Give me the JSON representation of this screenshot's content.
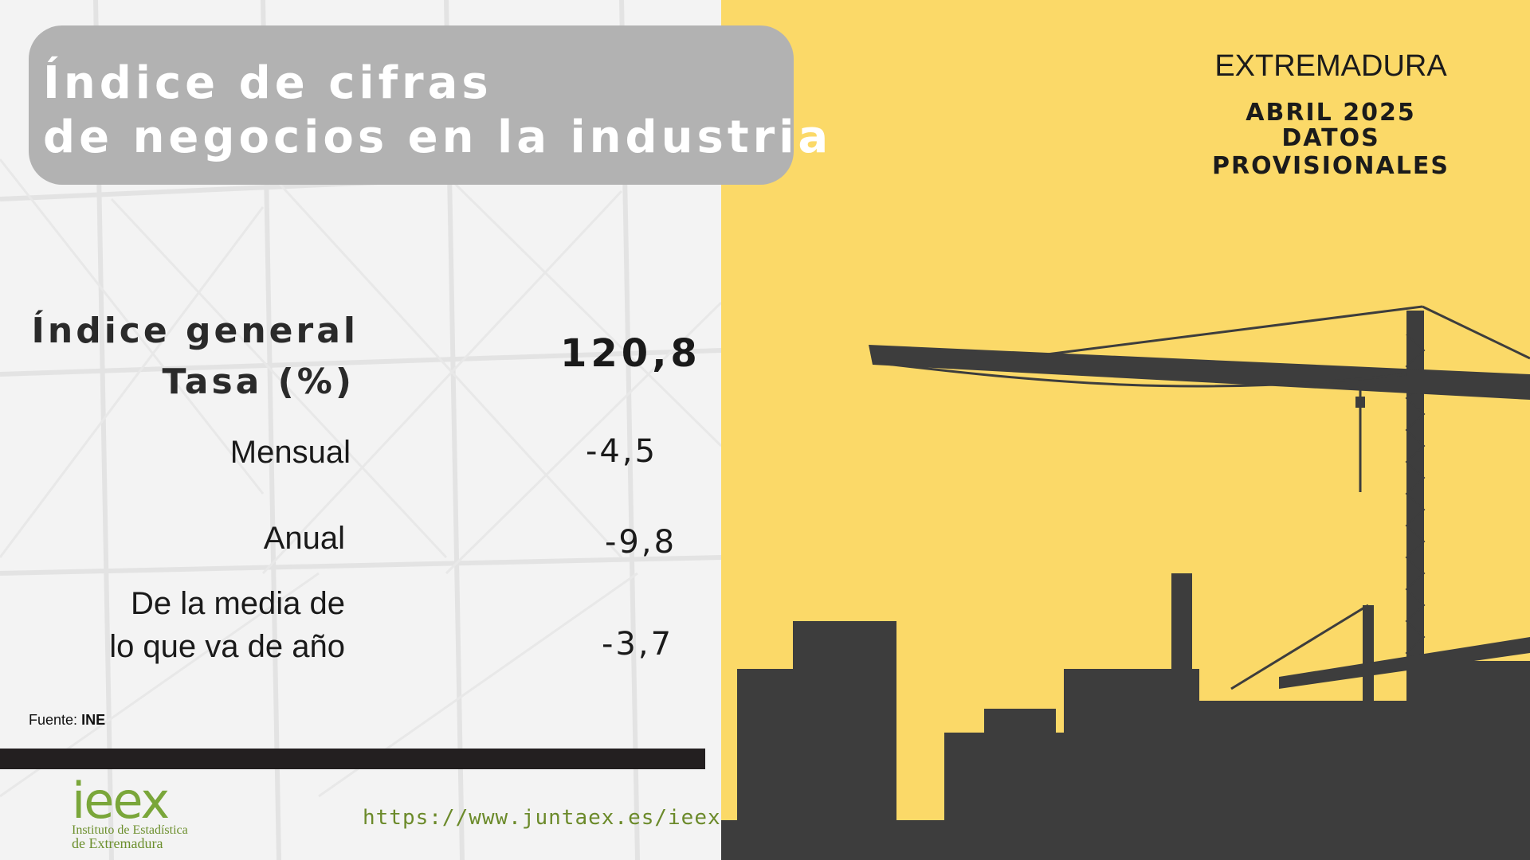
{
  "title": {
    "line1": "Índice de cifras",
    "line2": "de negocios en la industria"
  },
  "header": {
    "region": "EXTREMADURA",
    "period": "ABRIL 2025",
    "status": "DATOS PROVISIONALES"
  },
  "indicators": {
    "general_label": "Índice general",
    "general_value": "120,8",
    "rate_label": "Tasa (%)",
    "rows": [
      {
        "label": "Mensual",
        "value": "-4,5"
      },
      {
        "label": "Anual",
        "value": "-9,8"
      },
      {
        "label_line1": "De la media de",
        "label_line2": "lo que va de año",
        "value": "-3,7"
      }
    ]
  },
  "source": {
    "prefix": "Fuente:",
    "name": "INE"
  },
  "footer": {
    "logo_text": "ieex",
    "logo_sub1": "Instituto de Estadística",
    "logo_sub2": "de Extremadura",
    "url": "https://www.juntaex.es/ieex"
  },
  "colors": {
    "accent_yellow": "#fbd968",
    "silhouette": "#3d3d3d",
    "title_box": "#b2b2b2",
    "footer_bar": "#231f20",
    "logo_green": "#7aa63a"
  }
}
